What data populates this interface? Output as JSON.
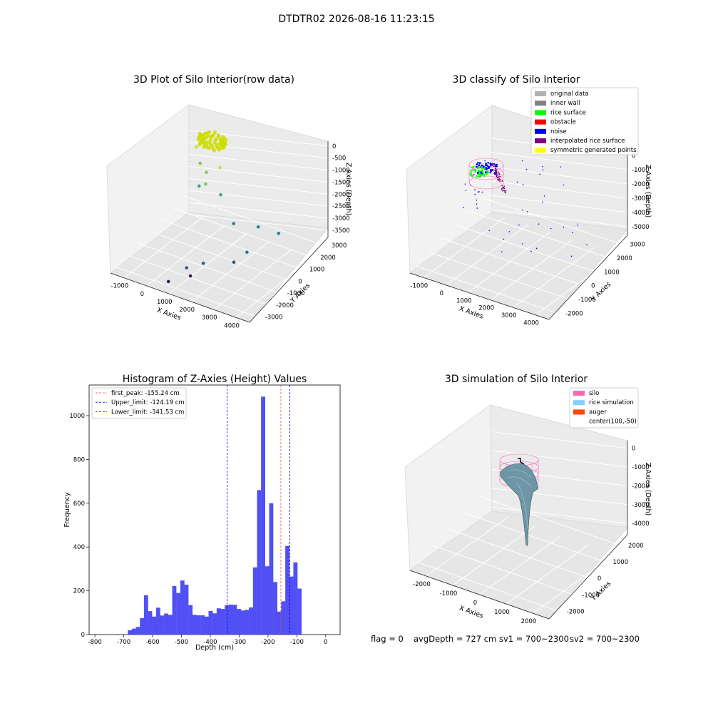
{
  "figure": {
    "suptitle": "DTDTR02 2026-08-16 11:23:15",
    "footer": {
      "flag": "flag = 0",
      "avg_depth": "avgDepth = 727 cm",
      "sv1": "sv1 = 700~2300",
      "sv2": "sv2 = 700~2300"
    }
  },
  "chart_data": [
    {
      "type": "scatter",
      "projection": "3d",
      "title": "3D Plot of Silo Interior(row data)",
      "xlabel": "X Axies",
      "ylabel": "Y Axies",
      "zlabel": "Z Axies (Depth)",
      "x_ticks": [
        "-1000",
        "0",
        "1000",
        "2000",
        "3000",
        "4000"
      ],
      "y_ticks": [
        "-3000",
        "-2000",
        "-1000",
        "0",
        "1000",
        "2000",
        "3000"
      ],
      "z_ticks": [
        "0",
        "-500",
        "-1000",
        "-1500",
        "-2000",
        "-2500",
        "-3000",
        "-3500"
      ],
      "colormap": "viridis",
      "points": [
        {
          "x": -500,
          "y": 2200,
          "z": -700
        },
        {
          "x": -300,
          "y": 2100,
          "z": -1200
        },
        {
          "x": 0,
          "y": 2000,
          "z": -1400
        },
        {
          "x": -200,
          "y": 1800,
          "z": -1900
        },
        {
          "x": 200,
          "y": 1500,
          "z": -1600
        },
        {
          "x": 600,
          "y": 1900,
          "z": -1000
        },
        {
          "x": 900,
          "y": 1300,
          "z": -1700
        },
        {
          "x": 1700,
          "y": 700,
          "z": -2300
        },
        {
          "x": 2600,
          "y": 900,
          "z": -2200
        },
        {
          "x": 3000,
          "y": 1800,
          "z": -2600
        },
        {
          "x": 2700,
          "y": -300,
          "z": -2700
        },
        {
          "x": 2500,
          "y": -1000,
          "z": -2900
        },
        {
          "x": 1500,
          "y": -1500,
          "z": -3100
        },
        {
          "x": 1400,
          "y": -2400,
          "z": -3300
        },
        {
          "x": 1200,
          "y": -2300,
          "z": -3100
        },
        {
          "x": 700,
          "y": -2800,
          "z": -3600
        }
      ],
      "dense_cluster": {
        "center_x": 0,
        "center_y": 2500,
        "z": -300,
        "color": "#ccdd00"
      }
    },
    {
      "type": "scatter",
      "projection": "3d",
      "title": "3D classify of Silo Interior",
      "xlabel": "X Axies",
      "ylabel": "Y Axies",
      "zlabel": "Z Axies (Depth)",
      "x_ticks": [
        "-1000",
        "0",
        "1000",
        "2000",
        "3000",
        "4000"
      ],
      "y_ticks": [
        "-2000",
        "-1000",
        "0",
        "1000",
        "2000",
        "3000"
      ],
      "z_ticks": [
        "0",
        "-1000",
        "-2000",
        "-3000",
        "-4000",
        "-5000"
      ],
      "legend_position": "top-right",
      "legend": [
        {
          "label": "original data",
          "color": "#b0b0b0"
        },
        {
          "label": "inner wall",
          "color": "#808080"
        },
        {
          "label": "rice surface",
          "color": "#00ff00"
        },
        {
          "label": "obstacle",
          "color": "#ff0000"
        },
        {
          "label": "noise",
          "color": "#0000ff"
        },
        {
          "label": "interpolated rice surface",
          "color": "#800080"
        },
        {
          "label": "symmetric generated points",
          "color": "#ffff00"
        }
      ]
    },
    {
      "type": "bar",
      "title": "Histogram of Z-Axies (Height) Values",
      "xlabel": "Depth (cm)",
      "ylabel": "Frequency",
      "xlim": [
        -820,
        50
      ],
      "ylim": [
        0,
        1140
      ],
      "x_ticks": [
        -800,
        -700,
        -600,
        -500,
        -400,
        -300,
        -200,
        -100,
        0
      ],
      "y_ticks": [
        0,
        200,
        400,
        600,
        800,
        1000
      ],
      "bar_color": "#5050f5",
      "bin_width": 14,
      "bin_start": -686,
      "values": [
        20,
        27,
        35,
        75,
        180,
        107,
        82,
        123,
        87,
        96,
        90,
        222,
        190,
        247,
        228,
        135,
        90,
        88,
        88,
        82,
        108,
        97,
        120,
        117,
        134,
        137,
        136,
        117,
        110,
        113,
        124,
        307,
        660,
        1087,
        312,
        600,
        240,
        105,
        152,
        405,
        265,
        330,
        210
      ],
      "vlines": [
        {
          "label": "first_peak: -155.24 cm",
          "x": -155.24,
          "color": "#ff4444"
        },
        {
          "label": "Upper_limit: -124.19 cm",
          "x": -124.19,
          "color": "#0000ff"
        },
        {
          "label": "Lower_limit: -341.53 cm",
          "x": -341.53,
          "color": "#0000ff"
        }
      ],
      "legend_position": "top-left"
    },
    {
      "type": "area",
      "projection": "3d",
      "title": "3D simulation of Silo Interior",
      "xlabel": "X Axies",
      "ylabel": "Y Axies",
      "zlabel": "Z Axies (Depth)",
      "x_ticks": [
        "-2000",
        "-1000",
        "0",
        "1000",
        "2000"
      ],
      "y_ticks": [
        "-2000",
        "-1000",
        "0",
        "1000",
        "2000"
      ],
      "z_ticks": [
        "0",
        "-1000",
        "-2000",
        "-3000",
        "-4000"
      ],
      "legend_position": "top-right",
      "legend": [
        {
          "label": "silo",
          "color": "#ff69b4"
        },
        {
          "label": "rice simulation",
          "color": "#87cefa"
        },
        {
          "label": "auger",
          "color": "#ff4500"
        },
        {
          "label": "center(100,-50)",
          "color": ""
        }
      ]
    }
  ]
}
